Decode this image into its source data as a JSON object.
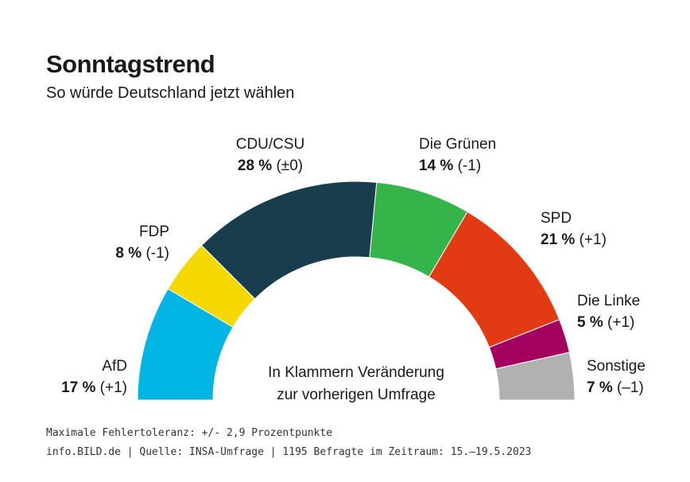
{
  "chart_data": {
    "type": "pie",
    "title": "Sonntagstrend",
    "subtitle": "So würde Deutschland jetzt wählen",
    "categories": [
      "AfD",
      "FDP",
      "CDU/CSU",
      "Die Grünen",
      "SPD",
      "Die Linke",
      "Sonstige"
    ],
    "values": [
      17,
      8,
      28,
      14,
      21,
      5,
      7
    ],
    "value_labels": [
      "17 %",
      "8 %",
      "28 %",
      "14 %",
      "21 %",
      "5 %",
      "7 %"
    ],
    "changes": [
      "(+1)",
      "(-1)",
      "(±0)",
      "(-1)",
      "(+1)",
      "(+1)",
      "(–1)"
    ],
    "colors": [
      "#00b4e4",
      "#f5d800",
      "#173d4e",
      "#35b44a",
      "#e23a12",
      "#a3005f",
      "#b1b1b1"
    ],
    "note": [
      "In Klammern Veränderung",
      "zur vorherigen Umfrage"
    ],
    "footnotes": [
      "Maximale Fehlertoleranz: +/- 2,9 Prozentpunkte",
      "info.BILD.de | Quelle: INSA-Umfrage | 1195 Befragte im Zeitraum: 15.–19.5.2023"
    ]
  }
}
